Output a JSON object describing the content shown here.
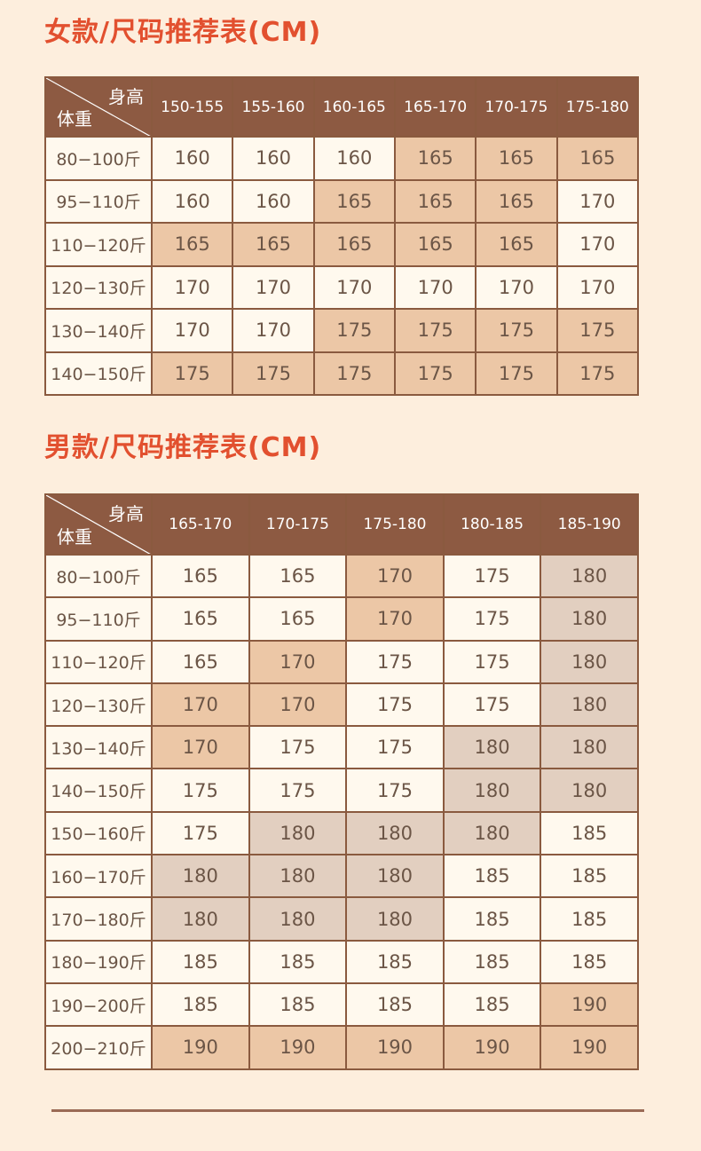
{
  "women": {
    "title": "女款/尺码推荐表(CM)",
    "corner_height": "身高",
    "corner_weight": "体重",
    "columns": [
      "150-155",
      "155-160",
      "160-165",
      "165-170",
      "170-175",
      "175-180"
    ],
    "rows": [
      {
        "weight": "80−100斤",
        "values": [
          "160",
          "160",
          "160",
          "165",
          "165",
          "165"
        ],
        "shade": [
          "",
          "",
          "",
          "p",
          "p",
          "p"
        ]
      },
      {
        "weight": "95−110斤",
        "values": [
          "160",
          "160",
          "165",
          "165",
          "165",
          "170"
        ],
        "shade": [
          "",
          "",
          "p",
          "p",
          "p",
          ""
        ]
      },
      {
        "weight": "110−120斤",
        "values": [
          "165",
          "165",
          "165",
          "165",
          "165",
          "170"
        ],
        "shade": [
          "p",
          "p",
          "p",
          "p",
          "p",
          ""
        ]
      },
      {
        "weight": "120−130斤",
        "values": [
          "170",
          "170",
          "170",
          "170",
          "170",
          "170"
        ],
        "shade": [
          "",
          "",
          "",
          "",
          "",
          ""
        ]
      },
      {
        "weight": "130−140斤",
        "values": [
          "170",
          "170",
          "175",
          "175",
          "175",
          "175"
        ],
        "shade": [
          "",
          "",
          "p",
          "p",
          "p",
          "p"
        ]
      },
      {
        "weight": "140−150斤",
        "values": [
          "175",
          "175",
          "175",
          "175",
          "175",
          "175"
        ],
        "shade": [
          "p",
          "p",
          "p",
          "p",
          "p",
          "p"
        ]
      }
    ]
  },
  "men": {
    "title": "男款/尺码推荐表(CM)",
    "corner_height": "身高",
    "corner_weight": "体重",
    "columns": [
      "165-170",
      "170-175",
      "175-180",
      "180-185",
      "185-190"
    ],
    "rows": [
      {
        "weight": "80−100斤",
        "values": [
          "165",
          "165",
          "170",
          "175",
          "180"
        ],
        "shade": [
          "",
          "",
          "p",
          "",
          "g"
        ]
      },
      {
        "weight": "95−110斤",
        "values": [
          "165",
          "165",
          "170",
          "175",
          "180"
        ],
        "shade": [
          "",
          "",
          "p",
          "",
          "g"
        ]
      },
      {
        "weight": "110−120斤",
        "values": [
          "165",
          "170",
          "175",
          "175",
          "180"
        ],
        "shade": [
          "",
          "p",
          "",
          "",
          "g"
        ]
      },
      {
        "weight": "120−130斤",
        "values": [
          "170",
          "170",
          "175",
          "175",
          "180"
        ],
        "shade": [
          "p",
          "p",
          "",
          "",
          "g"
        ]
      },
      {
        "weight": "130−140斤",
        "values": [
          "170",
          "175",
          "175",
          "180",
          "180"
        ],
        "shade": [
          "p",
          "",
          "",
          "g",
          "g"
        ]
      },
      {
        "weight": "140−150斤",
        "values": [
          "175",
          "175",
          "175",
          "180",
          "180"
        ],
        "shade": [
          "",
          "",
          "",
          "g",
          "g"
        ]
      },
      {
        "weight": "150−160斤",
        "values": [
          "175",
          "180",
          "180",
          "180",
          "185"
        ],
        "shade": [
          "",
          "g",
          "g",
          "g",
          ""
        ]
      },
      {
        "weight": "160−170斤",
        "values": [
          "180",
          "180",
          "180",
          "185",
          "185"
        ],
        "shade": [
          "g",
          "g",
          "g",
          "",
          ""
        ]
      },
      {
        "weight": "170−180斤",
        "values": [
          "180",
          "180",
          "180",
          "185",
          "185"
        ],
        "shade": [
          "g",
          "g",
          "g",
          "",
          ""
        ]
      },
      {
        "weight": "180−190斤",
        "values": [
          "185",
          "185",
          "185",
          "185",
          "185"
        ],
        "shade": [
          "",
          "",
          "",
          "",
          ""
        ]
      },
      {
        "weight": "190−200斤",
        "values": [
          "185",
          "185",
          "185",
          "185",
          "190"
        ],
        "shade": [
          "",
          "",
          "",
          "",
          "p"
        ]
      },
      {
        "weight": "200−210斤",
        "values": [
          "190",
          "190",
          "190",
          "190",
          "190"
        ],
        "shade": [
          "p",
          "p",
          "p",
          "p",
          "p"
        ]
      }
    ]
  },
  "colors": {
    "title": "#e2502f",
    "header": "#8d5a42",
    "cell": "#fff9ee",
    "peach": "#ecc7a6",
    "taupe": "#e2cfc0",
    "background": "#fdeedd"
  }
}
